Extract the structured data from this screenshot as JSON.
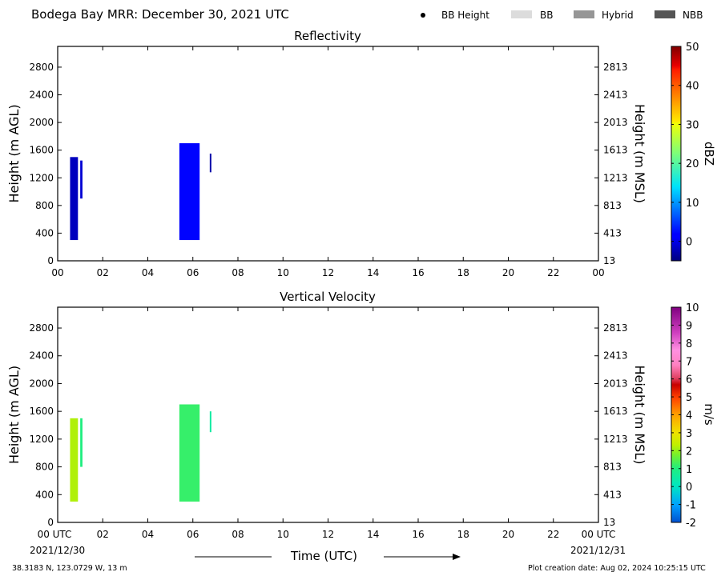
{
  "header": {
    "title": "Bodega Bay MRR:  December 30, 2021 UTC"
  },
  "legend": {
    "items": [
      {
        "label": "BB Height",
        "icon": "dot-icon",
        "color": "#000000"
      },
      {
        "label": "BB",
        "color": "#dcdcdc"
      },
      {
        "label": "Hybrid",
        "color": "#969696"
      },
      {
        "label": "NBB",
        "color": "#555555"
      }
    ]
  },
  "chart_data": [
    {
      "type": "heatmap",
      "title": "Reflectivity",
      "xlabel": "",
      "ylabel": "Height (m AGL)",
      "y2label": "Height (m MSL)",
      "xlim": [
        0,
        24
      ],
      "ylim": [
        0,
        3100
      ],
      "x_ticks": [
        "00",
        "02",
        "04",
        "06",
        "08",
        "10",
        "12",
        "14",
        "16",
        "18",
        "20",
        "22",
        "00"
      ],
      "y_ticks": [
        "0",
        "400",
        "800",
        "1200",
        "1600",
        "2000",
        "2400",
        "2800"
      ],
      "y2_ticks": [
        "13",
        "413",
        "813",
        "1213",
        "1613",
        "2013",
        "2413",
        "2813"
      ],
      "colorbar": {
        "label": "dBZ",
        "range": [
          -5,
          50
        ],
        "ticks": [
          "0",
          "10",
          "20",
          "30",
          "40",
          "50"
        ]
      },
      "echoes": [
        {
          "t_start": 0.55,
          "t_end": 0.9,
          "h_bottom": 300,
          "h_top": 1500,
          "value": -2
        },
        {
          "t_start": 1.0,
          "t_end": 1.1,
          "h_bottom": 900,
          "h_top": 1450,
          "value": -1
        },
        {
          "t_start": 5.4,
          "t_end": 6.3,
          "h_bottom": 300,
          "h_top": 1700,
          "value": 2
        },
        {
          "t_start": 6.75,
          "t_end": 6.82,
          "h_bottom": 1280,
          "h_top": 1550,
          "value": -3
        }
      ]
    },
    {
      "type": "heatmap",
      "title": "Vertical Velocity",
      "xlabel": "Time (UTC)",
      "ylabel": "Height (m AGL)",
      "y2label": "Height (m MSL)",
      "xlim": [
        0,
        24
      ],
      "ylim": [
        0,
        3100
      ],
      "x_ticks": [
        "00 UTC",
        "02",
        "04",
        "06",
        "08",
        "10",
        "12",
        "14",
        "16",
        "18",
        "20",
        "22",
        "00 UTC"
      ],
      "y_ticks": [
        "0",
        "400",
        "800",
        "1200",
        "1600",
        "2000",
        "2400",
        "2800"
      ],
      "y2_ticks": [
        "13",
        "413",
        "813",
        "1213",
        "1613",
        "2013",
        "2413",
        "2813"
      ],
      "colorbar": {
        "label": "m/s",
        "range": [
          -2,
          10
        ],
        "ticks": [
          "-2",
          "-1",
          "0",
          "1",
          "2",
          "3",
          "4",
          "5",
          "6",
          "7",
          "8",
          "9",
          "10"
        ]
      },
      "echoes": [
        {
          "t_start": 0.55,
          "t_end": 0.9,
          "h_bottom": 300,
          "h_top": 1500,
          "value": 2.2
        },
        {
          "t_start": 1.0,
          "t_end": 1.1,
          "h_bottom": 800,
          "h_top": 1500,
          "value": 1.0
        },
        {
          "t_start": 5.4,
          "t_end": 6.3,
          "h_bottom": 300,
          "h_top": 1700,
          "value": 1.2
        },
        {
          "t_start": 6.75,
          "t_end": 6.82,
          "h_bottom": 1300,
          "h_top": 1600,
          "value": 0.5
        }
      ]
    }
  ],
  "footer": {
    "start_date": "2021/12/30",
    "end_date": "2021/12/31",
    "coords": "38.3183 N, 123.0729 W, 13 m",
    "creation": "Plot creation date: Aug 02, 2024 10:25:15 UTC"
  }
}
